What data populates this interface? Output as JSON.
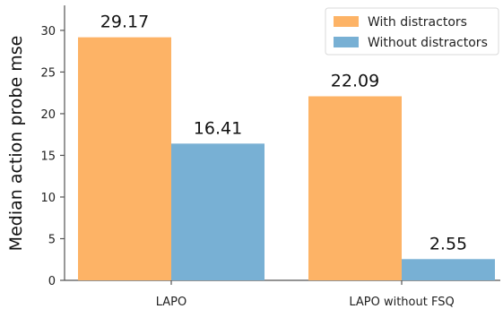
{
  "chart_data": {
    "type": "bar",
    "title": "",
    "xlabel": "",
    "ylabel": "Median action probe mse",
    "categories": [
      "LAPO",
      "LAPO without FSQ"
    ],
    "series": [
      {
        "name": "With distractors",
        "values": [
          29.17,
          22.09
        ],
        "color": "#fdb366"
      },
      {
        "name": "Without distractors",
        "values": [
          16.41,
          2.55
        ],
        "color": "#78b0d4"
      }
    ],
    "ylim": [
      0,
      33
    ],
    "yticks": [
      0,
      5,
      10,
      15,
      20,
      25,
      30
    ],
    "data_labels": [
      "29.17",
      "16.41",
      "22.09",
      "2.55"
    ],
    "legend_position": "top-right",
    "grid": false
  }
}
